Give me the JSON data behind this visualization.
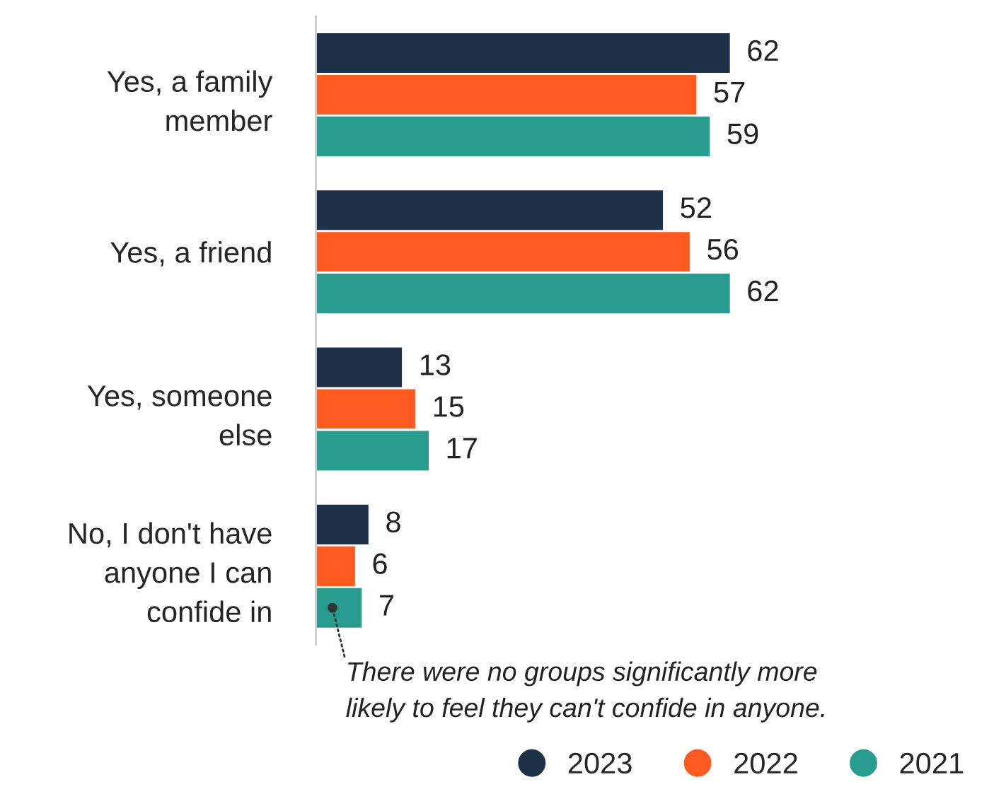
{
  "chart_data": {
    "type": "bar",
    "orientation": "horizontal",
    "categories": [
      "Yes, a family\nmember",
      "Yes, a friend",
      "Yes, someone\nelse",
      "No, I don't have\nanyone I can\nconfide in"
    ],
    "series": [
      {
        "name": "2023",
        "color": "#1f3049",
        "values": [
          62,
          52,
          13,
          8
        ]
      },
      {
        "name": "2022",
        "color": "#ff5a1f",
        "values": [
          57,
          56,
          15,
          6
        ]
      },
      {
        "name": "2021",
        "color": "#279c8f",
        "values": [
          59,
          62,
          17,
          7
        ]
      }
    ],
    "data_labels": true,
    "legend": "bottom right",
    "grid": false,
    "tick_labels": "y",
    "annotations": [
      "There were no groups significantly more\nlikely to feel they can't confide in anyone."
    ]
  }
}
